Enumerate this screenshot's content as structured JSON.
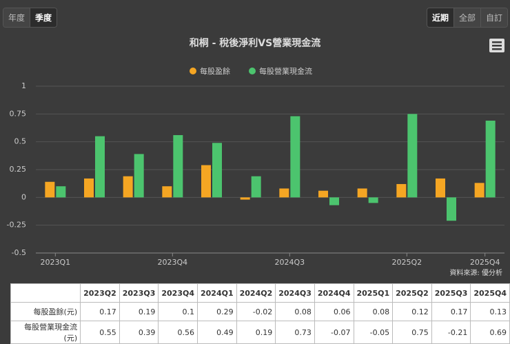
{
  "controls": {
    "period_buttons": [
      "年度",
      "季度"
    ],
    "range_buttons": [
      "近期",
      "全部",
      "自訂"
    ]
  },
  "chart_data": {
    "type": "bar",
    "title": "和桐 - 稅後淨利VS營業現金流",
    "categories": [
      "2023Q1",
      null,
      null,
      "2023Q4",
      null,
      null,
      "2024Q3",
      null,
      null,
      "2025Q2",
      null,
      "2025Q4"
    ],
    "series": [
      {
        "name": "每股盈餘",
        "color": "#f5a623",
        "values": [
          0.14,
          0.17,
          0.19,
          0.1,
          0.29,
          -0.02,
          0.08,
          0.06,
          0.08,
          0.12,
          0.17,
          0.13
        ]
      },
      {
        "name": "每股營業現金流",
        "color": "#4cc46e",
        "values": [
          0.1,
          0.55,
          0.39,
          0.56,
          0.49,
          0.19,
          0.73,
          -0.07,
          -0.05,
          0.75,
          -0.21,
          0.69
        ]
      }
    ],
    "ylim": [
      -0.5,
      1
    ],
    "yticks": [
      1,
      0.75,
      0.5,
      0.25,
      0,
      -0.25,
      -0.5
    ],
    "grid": true,
    "source": "資料來源: 優分析"
  },
  "table": {
    "header": [
      "2023Q2",
      "2023Q3",
      "2023Q4",
      "2024Q1",
      "2024Q2",
      "2024Q3",
      "2024Q4",
      "2025Q1",
      "2025Q2",
      "2025Q3",
      "2025Q4"
    ],
    "rows": [
      {
        "label": "每股盈餘(元)",
        "cells": [
          0.17,
          0.19,
          0.1,
          0.29,
          -0.02,
          0.08,
          0.06,
          0.08,
          0.12,
          0.17,
          0.13
        ]
      },
      {
        "label": "每股營業現金流(元)",
        "cells": [
          0.55,
          0.39,
          0.56,
          0.49,
          0.19,
          0.73,
          -0.07,
          -0.05,
          0.75,
          -0.21,
          0.69
        ]
      }
    ]
  }
}
